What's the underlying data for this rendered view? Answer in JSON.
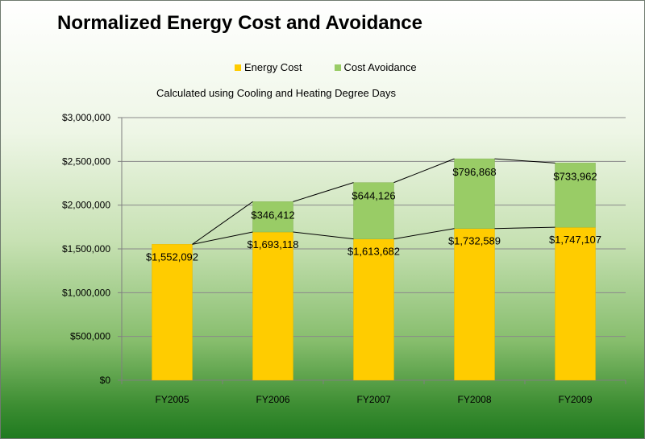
{
  "chart_data": {
    "type": "bar",
    "stacked": true,
    "title": "Normalized Energy Cost and Avoidance",
    "subtitle": "Calculated using Cooling and Heating Degree Days",
    "categories": [
      "FY2005",
      "FY2006",
      "FY2007",
      "FY2008",
      "FY2009"
    ],
    "series": [
      {
        "name": "Energy Cost",
        "color": "#FFCC00",
        "values": [
          1552092,
          1693118,
          1613682,
          1732589,
          1747107
        ],
        "labels": [
          "$1,552,092",
          "$1,693,118",
          "$1,613,682",
          "$1,732,589",
          "$1,747,107"
        ]
      },
      {
        "name": "Cost Avoidance",
        "color": "#99CC66",
        "values": [
          null,
          346412,
          644126,
          796868,
          733962
        ],
        "labels": [
          "",
          "$346,412",
          "$644,126",
          "$796,868",
          "$733,962"
        ]
      }
    ],
    "ylim": [
      0,
      3000000
    ],
    "yticks": [
      0,
      500000,
      1000000,
      1500000,
      2000000,
      2500000,
      3000000
    ],
    "ytick_labels": [
      "$0",
      "$500,000",
      "$1,000,000",
      "$1,500,000",
      "$2,000,000",
      "$2,500,000",
      "$3,000,000"
    ],
    "grid": true,
    "series_lines": true,
    "legend_position": "top"
  }
}
